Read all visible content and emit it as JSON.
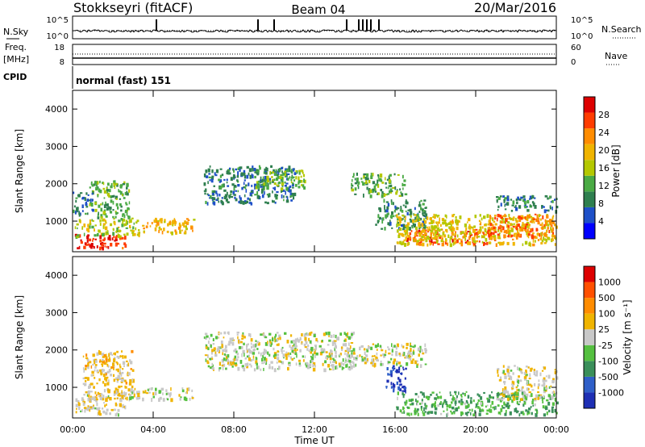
{
  "header": {
    "station": "Stokkseyri (fitACF)",
    "beam": "Beam 04",
    "date": "20/Mar/2016"
  },
  "panel_nsky": {
    "left_label": "N.Sky",
    "right_label": "N.Search",
    "left_ticks": [
      "10^5",
      "10^0"
    ],
    "right_ticks": [
      "10^5",
      "10^0"
    ]
  },
  "panel_freq": {
    "left_label_1": "Freq.",
    "left_label_2": "[MHz]",
    "right_label": "Nave",
    "left_ticks": [
      "18",
      "8"
    ],
    "right_ticks": [
      "60",
      "0"
    ]
  },
  "panel_cpid": {
    "label": "CPID",
    "mode": "normal (fast) 151"
  },
  "power_panel": {
    "ylabel": "Slant Range [km]",
    "y_ticks": [
      "4000",
      "3000",
      "2000",
      "1000"
    ],
    "colorbar_label": "Power [dB]",
    "colorbar_ticks": [
      "28",
      "24",
      "20",
      "16",
      "12",
      "8",
      "4"
    ],
    "colors": [
      "#0000ff",
      "#1e50c8",
      "#2f7f4f",
      "#4aaa44",
      "#b4c800",
      "#f0b400",
      "#ff8c00",
      "#ff3c00",
      "#dd0000"
    ]
  },
  "velocity_panel": {
    "ylabel": "Slant Range [km]",
    "y_ticks": [
      "4000",
      "3000",
      "2000",
      "1000"
    ],
    "colorbar_label": "Velocity [m s⁻¹]",
    "colorbar_ticks": [
      "1000",
      "500",
      "100",
      "25",
      "-25",
      "-100",
      "-500",
      "-1000"
    ],
    "colors": [
      "#1e2fb4",
      "#2f5fc8",
      "#3a8f5a",
      "#55c040",
      "#c8c8c8",
      "#f0b400",
      "#ff8c00",
      "#ff5000",
      "#dd0000"
    ]
  },
  "x_axis": {
    "ticks": [
      "00:00",
      "04:00",
      "08:00",
      "12:00",
      "16:00",
      "20:00",
      "00:00"
    ],
    "label": "Time UT"
  },
  "chart_data": {
    "type": "heatmap",
    "x_range_hours": [
      0,
      24
    ],
    "y_range_km": [
      180,
      4500
    ],
    "series": [
      {
        "name": "Power [dB]",
        "colorbar_range": [
          0,
          32
        ],
        "regions": [
          {
            "t": [
              0.1,
              2.6
            ],
            "r": [
              300,
              700
            ],
            "v": 28
          },
          {
            "t": [
              0.1,
              3.3
            ],
            "r": [
              600,
              1100
            ],
            "v": 16
          },
          {
            "t": [
              0.8,
              2.8
            ],
            "r": [
              1100,
              2100
            ],
            "v": 12
          },
          {
            "t": [
              0.0,
              1.0
            ],
            "r": [
              1200,
              1800
            ],
            "v": 8
          },
          {
            "t": [
              3.4,
              6.0
            ],
            "r": [
              700,
              1100
            ],
            "v": 20
          },
          {
            "t": [
              6.5,
              11.0
            ],
            "r": [
              1500,
              2500
            ],
            "v": 8
          },
          {
            "t": [
              9.0,
              11.5
            ],
            "r": [
              1900,
              2400
            ],
            "v": 14
          },
          {
            "t": [
              13.8,
              16.5
            ],
            "r": [
              1700,
              2300
            ],
            "v": 12
          },
          {
            "t": [
              15.0,
              17.5
            ],
            "r": [
              800,
              1600
            ],
            "v": 10
          },
          {
            "t": [
              16.5,
              21.0
            ],
            "r": [
              400,
              800
            ],
            "v": 26
          },
          {
            "t": [
              16.0,
              24.0
            ],
            "r": [
              400,
              1200
            ],
            "v": 18
          },
          {
            "t": [
              20.5,
              23.8
            ],
            "r": [
              600,
              1200
            ],
            "v": 24
          },
          {
            "t": [
              21.0,
              24.0
            ],
            "r": [
              1300,
              1700
            ],
            "v": 8
          }
        ]
      },
      {
        "name": "Velocity [m s-1]",
        "colorbar_range": [
          -1000,
          1000
        ],
        "regions": [
          {
            "t": [
              0.1,
              2.6
            ],
            "r": [
              300,
              900
            ],
            "v": 100
          },
          {
            "t": [
              0.5,
              3.0
            ],
            "r": [
              700,
              2000
            ],
            "v": 150
          },
          {
            "t": [
              2.8,
              6.0
            ],
            "r": [
              700,
              1000
            ],
            "v": 0
          },
          {
            "t": [
              6.5,
              14.0
            ],
            "r": [
              1500,
              2500
            ],
            "v": 0
          },
          {
            "t": [
              13.5,
              17.5
            ],
            "r": [
              1600,
              2200
            ],
            "v": 0
          },
          {
            "t": [
              15.5,
              16.5
            ],
            "r": [
              900,
              1600
            ],
            "v": -800
          },
          {
            "t": [
              16.0,
              24.0
            ],
            "r": [
              300,
              900
            ],
            "v": -300
          },
          {
            "t": [
              21.0,
              24.0
            ],
            "r": [
              700,
              1600
            ],
            "v": 50
          }
        ]
      }
    ]
  }
}
